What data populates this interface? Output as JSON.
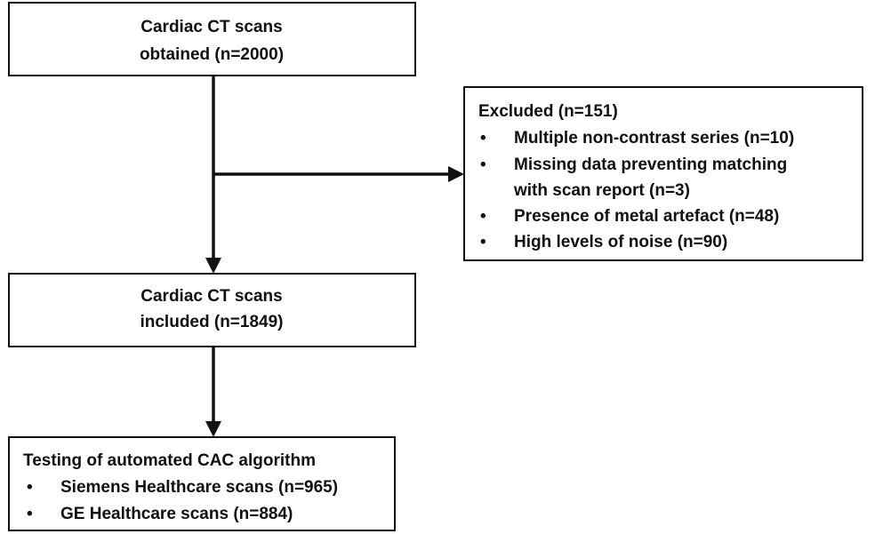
{
  "nodes": [
    {
      "lines": [
        "Cardiac CT scans",
        "obtained (n=2000)"
      ]
    },
    {
      "title": "Excluded (n=151)",
      "items": [
        [
          "Multiple non-contrast series (n=10)"
        ],
        [
          "Missing data preventing matching",
          "with scan report (n=3)"
        ],
        [
          "Presence of metal artefact (n=48)"
        ],
        [
          "High levels of noise (n=90)"
        ]
      ]
    },
    {
      "lines": [
        "Cardiac CT scans",
        "included (n=1849)"
      ]
    },
    {
      "title": "Testing of automated CAC algorithm",
      "items": [
        [
          "Siemens Healthcare scans (n=965)"
        ],
        [
          "GE Healthcare scans (n=884)"
        ]
      ]
    }
  ]
}
